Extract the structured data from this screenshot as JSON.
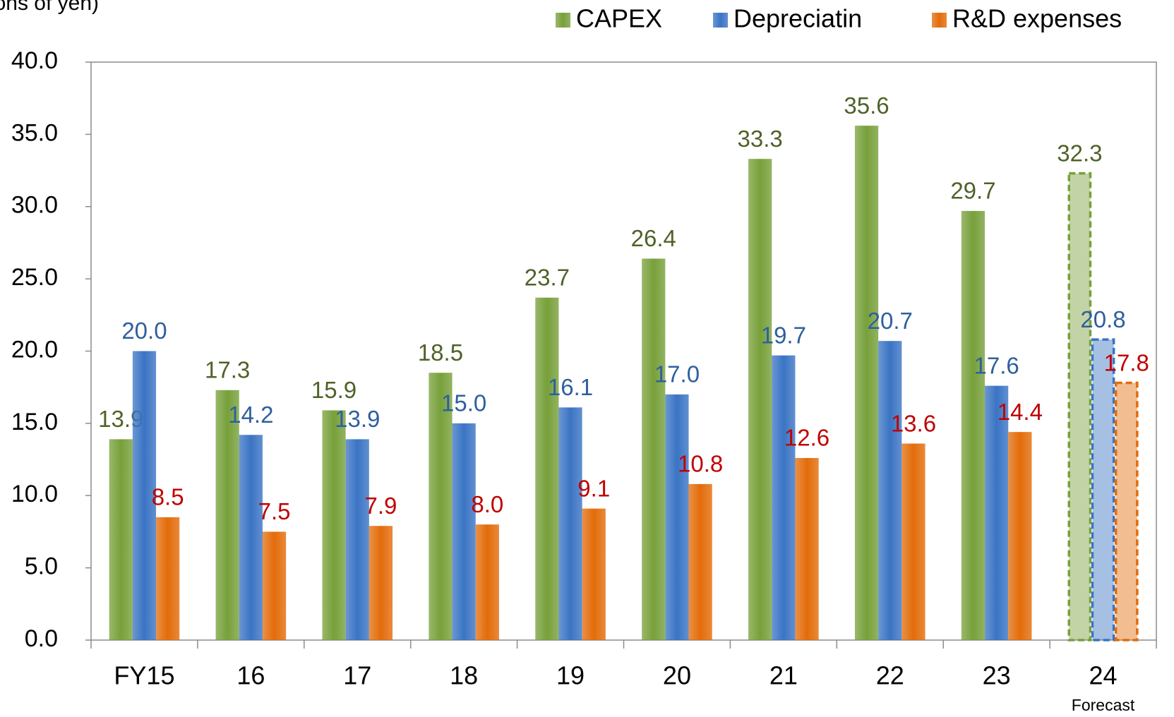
{
  "chart_data": {
    "type": "bar",
    "y_label": "(Billions of yen)",
    "annotation": "Forecast",
    "categories": [
      "FY15",
      "16",
      "17",
      "18",
      "19",
      "20",
      "21",
      "22",
      "23",
      "24"
    ],
    "series": [
      {
        "name": "CAPEX",
        "color": "#77a03a",
        "label_color": "#4f6228",
        "values": [
          13.9,
          17.3,
          15.9,
          18.5,
          23.7,
          26.4,
          33.3,
          35.6,
          29.7,
          32.3
        ],
        "value_labels": [
          "13.9",
          "17.3",
          "15.9",
          "18.5",
          "23.7",
          "26.4",
          "33.3",
          "35.6",
          "29.7",
          "32.3"
        ]
      },
      {
        "name": "Depreciatin",
        "color": "#3a74c4",
        "label_color": "#2e5f9e",
        "values": [
          20.0,
          14.2,
          13.9,
          15.0,
          16.1,
          17.0,
          19.7,
          20.7,
          17.6,
          20.8
        ],
        "value_labels": [
          "20.0",
          "14.2",
          "13.9",
          "15.0",
          "16.1",
          "17.0",
          "19.7",
          "20.7",
          "17.6",
          "20.8"
        ]
      },
      {
        "name": "R&D expenses",
        "color": "#e36c0a",
        "label_color": "#c00000",
        "values": [
          8.5,
          7.5,
          7.9,
          8.0,
          9.1,
          10.8,
          12.6,
          13.6,
          14.4,
          17.8
        ],
        "value_labels": [
          "8.5",
          "7.5",
          "7.9",
          "8.0",
          "9.1",
          "10.8",
          "12.6",
          "13.6",
          "14.4",
          "17.8"
        ]
      }
    ],
    "ylim": [
      0,
      40
    ],
    "yticks": [
      {
        "value": 0,
        "label": "0.0"
      },
      {
        "value": 5,
        "label": "5.0"
      },
      {
        "value": 10,
        "label": "10.0"
      },
      {
        "value": 15,
        "label": "15.0"
      },
      {
        "value": 20,
        "label": "20.0"
      },
      {
        "value": 25,
        "label": "25.0"
      },
      {
        "value": 30,
        "label": "30.0"
      },
      {
        "value": 35,
        "label": "35.0"
      },
      {
        "value": 40,
        "label": "40.0"
      }
    ],
    "grid": false,
    "legend": "top-right"
  }
}
